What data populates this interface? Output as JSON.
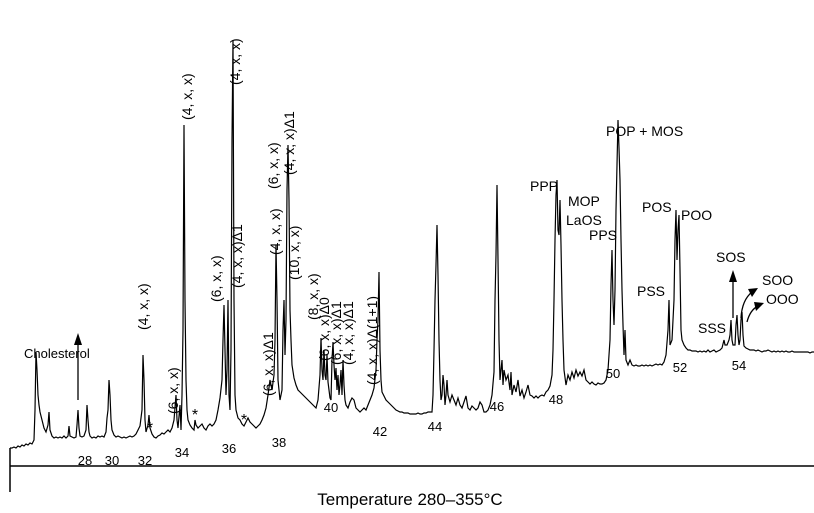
{
  "chart_data": {
    "type": "line",
    "xlabel": "Temperature 280–355°C",
    "x_ticks": [
      "28",
      "30",
      "32",
      "34",
      "36",
      "38",
      "40",
      "42",
      "44",
      "46",
      "48",
      "50",
      "52",
      "54"
    ],
    "peak_labels": [
      {
        "text": "Cholesterol"
      },
      {
        "text": "(4, x, x)"
      },
      {
        "text": "(6, x, x)"
      },
      {
        "text": "(4, x, x)"
      },
      {
        "text": "(6, x, x)"
      },
      {
        "text": "(4, x, x)"
      },
      {
        "text": "(4, x, x)Δ1"
      },
      {
        "text": "(6, x, x)Δ1"
      },
      {
        "text": "(4, x, x)"
      },
      {
        "text": "(6, x, x)"
      },
      {
        "text": "(4, x, x)Δ1"
      },
      {
        "text": "(10, x, x)"
      },
      {
        "text": "(8, x, x)"
      },
      {
        "text": "(6, x, x)Δ0"
      },
      {
        "text": "(6, x, x)Δ1"
      },
      {
        "text": "(4, x, x)Δ1"
      },
      {
        "text": "(4, x, x)Δ(1+1)"
      },
      {
        "text": "PPP"
      },
      {
        "text": "MOP"
      },
      {
        "text": "LaOS"
      },
      {
        "text": "PPS"
      },
      {
        "text": "POP + MOS"
      },
      {
        "text": "POS"
      },
      {
        "text": "POO"
      },
      {
        "text": "PSS"
      },
      {
        "text": "SOS"
      },
      {
        "text": "SOO"
      },
      {
        "text": "OOO"
      },
      {
        "text": "SSS"
      }
    ],
    "markers": [
      "*",
      "*",
      "*"
    ]
  }
}
